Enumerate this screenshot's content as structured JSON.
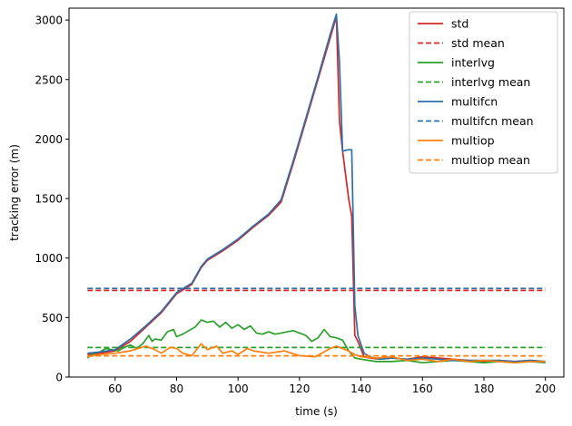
{
  "chart_data": {
    "type": "line",
    "xlabel": "time (s)",
    "ylabel": "tracking error (m)",
    "xlim": [
      45,
      206
    ],
    "ylim": [
      0,
      3100
    ],
    "xticks": [
      60,
      80,
      100,
      120,
      140,
      160,
      180,
      200
    ],
    "yticks": [
      0,
      500,
      1000,
      1500,
      2000,
      2500,
      3000
    ],
    "grid": false,
    "legend_position": "top-right",
    "series": [
      {
        "name": "std",
        "color": "#d62728",
        "style": "solid",
        "x": [
          51,
          55,
          60,
          65,
          70,
          75,
          80,
          85,
          88,
          90,
          95,
          100,
          105,
          110,
          114,
          118,
          122,
          126,
          130,
          132,
          133,
          134,
          136,
          137,
          138,
          139,
          141,
          143,
          146,
          150,
          155,
          160,
          165,
          170,
          175,
          180,
          185,
          190,
          195,
          200
        ],
        "values": [
          190,
          200,
          220,
          300,
          420,
          540,
          700,
          780,
          920,
          980,
          1060,
          1150,
          1260,
          1360,
          1470,
          1800,
          2150,
          2500,
          2850,
          3030,
          2150,
          1900,
          1500,
          1350,
          350,
          300,
          170,
          160,
          150,
          160,
          150,
          170,
          160,
          150,
          140,
          130,
          140,
          130,
          140,
          130
        ]
      },
      {
        "name": "std mean",
        "color": "#d62728",
        "style": "dashed",
        "x": [
          51,
          200
        ],
        "values": [
          728,
          728
        ]
      },
      {
        "name": "interlvg",
        "color": "#2ca02c",
        "style": "solid",
        "x": [
          51,
          53,
          55,
          57,
          59,
          61,
          63,
          65,
          67,
          69,
          71,
          72,
          73,
          75,
          77,
          79,
          80,
          82,
          84,
          86,
          88,
          90,
          92,
          94,
          96,
          98,
          100,
          102,
          104,
          106,
          108,
          110,
          112,
          114,
          116,
          118,
          120,
          122,
          124,
          126,
          128,
          130,
          132,
          134,
          136,
          138,
          140,
          145,
          150,
          155,
          160,
          165,
          170,
          175,
          180,
          185,
          190,
          195,
          200
        ],
        "values": [
          160,
          200,
          210,
          240,
          230,
          220,
          250,
          270,
          240,
          280,
          350,
          300,
          320,
          310,
          380,
          400,
          340,
          360,
          390,
          420,
          480,
          460,
          470,
          420,
          460,
          410,
          440,
          400,
          430,
          370,
          360,
          380,
          360,
          370,
          380,
          390,
          370,
          350,
          300,
          330,
          400,
          340,
          330,
          310,
          220,
          160,
          150,
          130,
          130,
          140,
          120,
          130,
          140,
          130,
          120,
          130,
          120,
          130,
          120
        ]
      },
      {
        "name": "interlvg mean",
        "color": "#2ca02c",
        "style": "dashed",
        "x": [
          51,
          200
        ],
        "values": [
          248,
          248
        ]
      },
      {
        "name": "multifcn",
        "color": "#2f6fa8",
        "style": "solid",
        "x": [
          51,
          55,
          60,
          65,
          70,
          75,
          80,
          85,
          88,
          90,
          95,
          100,
          105,
          110,
          114,
          118,
          122,
          126,
          130,
          132,
          133,
          134,
          136,
          137,
          138,
          139,
          141,
          143,
          146,
          150,
          155,
          160,
          165,
          170,
          175,
          180,
          185,
          190,
          195,
          200
        ],
        "values": [
          200,
          210,
          230,
          320,
          430,
          550,
          710,
          790,
          930,
          990,
          1070,
          1160,
          1270,
          1370,
          1490,
          1820,
          2170,
          2520,
          2880,
          3050,
          2650,
          1900,
          1910,
          1910,
          600,
          350,
          200,
          170,
          150,
          160,
          150,
          160,
          150,
          140,
          140,
          140,
          140,
          130,
          140,
          130
        ]
      },
      {
        "name": "multifcn mean",
        "color": "#2f6fa8",
        "style": "dashed",
        "x": [
          51,
          200
        ],
        "values": [
          745,
          745
        ]
      },
      {
        "name": "multiop",
        "color": "#ff7f0e",
        "style": "solid",
        "x": [
          51,
          55,
          60,
          65,
          70,
          73,
          75,
          78,
          80,
          82,
          85,
          88,
          90,
          93,
          95,
          98,
          100,
          103,
          105,
          110,
          115,
          120,
          125,
          130,
          132,
          135,
          138,
          140,
          145,
          150,
          155,
          160,
          165,
          170,
          175,
          180,
          185,
          190,
          195,
          200
        ],
        "values": [
          170,
          190,
          200,
          220,
          260,
          230,
          200,
          250,
          240,
          200,
          180,
          280,
          230,
          260,
          200,
          220,
          190,
          240,
          220,
          200,
          220,
          180,
          170,
          240,
          260,
          230,
          190,
          170,
          160,
          170,
          140,
          150,
          130,
          150,
          130,
          140,
          130,
          120,
          130,
          130
        ]
      },
      {
        "name": "multiop mean",
        "color": "#ff7f0e",
        "style": "dashed",
        "x": [
          51,
          200
        ],
        "values": [
          178,
          178
        ]
      }
    ]
  }
}
